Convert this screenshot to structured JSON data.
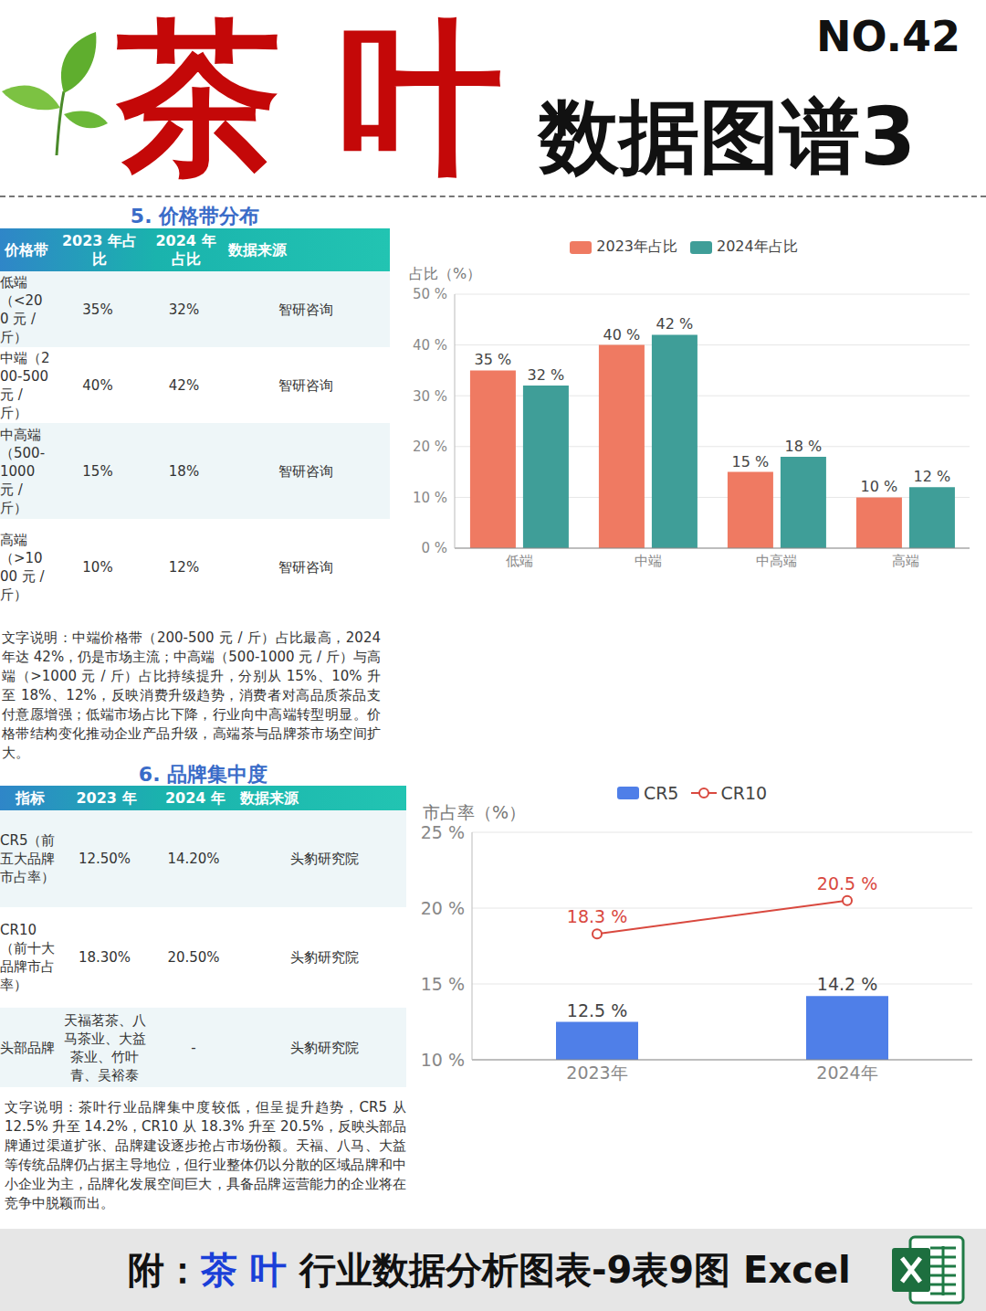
{
  "header": {
    "title": "茶 叶",
    "subtitle": "数据图谱3",
    "number": "NO.42"
  },
  "sections": [
    {
      "title": "5. 价格带分布",
      "table": {
        "columns": [
          "价格带",
          "2023 年占比",
          "2024 年占比",
          "数据来源"
        ],
        "rows": [
          [
            "低端（<200 元 / 斤）",
            "35%",
            "32%",
            "智研咨询"
          ],
          [
            "中端（200-500 元 / 斤）",
            "40%",
            "42%",
            "智研咨询"
          ],
          [
            "中高端（500-1000 元 / 斤）",
            "15%",
            "18%",
            "智研咨询"
          ],
          [
            "高端（>1000 元 / 斤）",
            "10%",
            "12%",
            "智研咨询"
          ]
        ]
      },
      "text": "文字说明：中端价格带（200-500 元 / 斤）占比最高，2024 年达 42%，仍是市场主流；中高端（500-1000 元 / 斤）与高端（>1000 元 / 斤）占比持续提升，分别从 15%、10% 升至 18%、12%，反映消费升级趋势，消费者对高品质茶品支付意愿增强；低端市场占比下降，行业向中高端转型明显。价格带结构变化推动企业产品升级，高端茶与品牌茶市场空间扩大。"
    },
    {
      "title": "6. 品牌集中度",
      "table": {
        "columns": [
          "指标",
          "2023 年",
          "2024 年",
          "数据来源"
        ],
        "rows": [
          [
            "CR5（前五大品牌市占率）",
            "12.50%",
            "14.20%",
            "头豹研究院"
          ],
          [
            "CR10（前十大品牌市占率）",
            "18.30%",
            "20.50%",
            "头豹研究院"
          ],
          [
            "头部品牌",
            "天福茗茶、八马茶业、大益茶业、竹叶青、吴裕泰",
            "-",
            "头豹研究院"
          ]
        ]
      },
      "text": "文字说明：茶叶行业品牌集中度较低，但呈提升趋势，CR5 从 12.5% 升至 14.2%，CR10 从 18.3% 升至 20.5%，反映头部品牌通过渠道扩张、品牌建设逐步抢占市场份额。天福、八马、大益等传统品牌仍占据主导地位，但行业整体仍以分散的区域品牌和中小企业为主，品牌化发展空间巨大，具备品牌运营能力的企业将在竞争中脱颖而出。"
    }
  ],
  "chart_data": [
    {
      "type": "bar",
      "y_label": "占比（%）",
      "categories": [
        "低端",
        "中端",
        "中高端",
        "高端"
      ],
      "series": [
        {
          "name": "2023年占比",
          "color": "#ef7a62",
          "values": [
            35,
            40,
            15,
            10
          ],
          "value_labels": [
            "35 %",
            "40 %",
            "15 %",
            "10 %"
          ]
        },
        {
          "name": "2024年占比",
          "color": "#3f9e98",
          "values": [
            32,
            42,
            18,
            12
          ],
          "value_labels": [
            "32 %",
            "42 %",
            "18 %",
            "12 %"
          ]
        }
      ],
      "ylim": [
        0,
        50
      ],
      "yticks": [
        {
          "value": 0,
          "label": "0 %"
        },
        {
          "value": 10,
          "label": "10 %"
        },
        {
          "value": 20,
          "label": "20 %"
        },
        {
          "value": 30,
          "label": "30 %"
        },
        {
          "value": 40,
          "label": "40 %"
        },
        {
          "value": 50,
          "label": "50 %"
        }
      ],
      "grid": true,
      "legend": "top",
      "data_labels": true
    },
    {
      "type": "combo",
      "y_label": "市占率（%）",
      "categories": [
        "2023年",
        "2024年"
      ],
      "series": [
        {
          "name": "CR5",
          "type": "bar",
          "color": "#4f7fe8",
          "values": [
            12.5,
            14.2
          ],
          "value_labels": [
            "12.5 %",
            "14.2 %"
          ]
        },
        {
          "name": "CR10",
          "type": "line",
          "marker": "circle",
          "color": "#d9493f",
          "values": [
            18.3,
            20.5
          ],
          "value_labels": [
            "18.3 %",
            "20.5 %"
          ]
        }
      ],
      "ylim": [
        10,
        25
      ],
      "yticks": [
        {
          "value": 10,
          "label": "10 %"
        },
        {
          "value": 15,
          "label": "15 %"
        },
        {
          "value": 20,
          "label": "20 %"
        },
        {
          "value": 25,
          "label": "25 %"
        }
      ],
      "grid": true,
      "legend": "top",
      "data_labels": true
    }
  ],
  "footer": {
    "prefix": "附：",
    "highlight": "茶 叶",
    "text": "行业数据分析图表-9表9图 Excel"
  }
}
